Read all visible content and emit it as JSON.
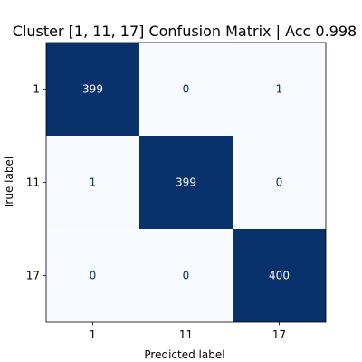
{
  "colors": {
    "dark": "#08306b",
    "light": "#f7fbff",
    "text_on_dark": "#f7fbff",
    "text_on_light": "#08306b"
  },
  "chart_data": {
    "type": "heatmap",
    "title": "Cluster [1, 11, 17] Confusion Matrix | Acc 0.998",
    "xlabel": "Predicted label",
    "ylabel": "True label",
    "x_categories": [
      "1",
      "11",
      "17"
    ],
    "y_categories": [
      "1",
      "11",
      "17"
    ],
    "values": [
      [
        399,
        0,
        1
      ],
      [
        1,
        399,
        0
      ],
      [
        0,
        0,
        400
      ]
    ],
    "colormap": "Blues",
    "vmin": 0,
    "vmax": 400,
    "colorbar": false,
    "grid": false
  }
}
